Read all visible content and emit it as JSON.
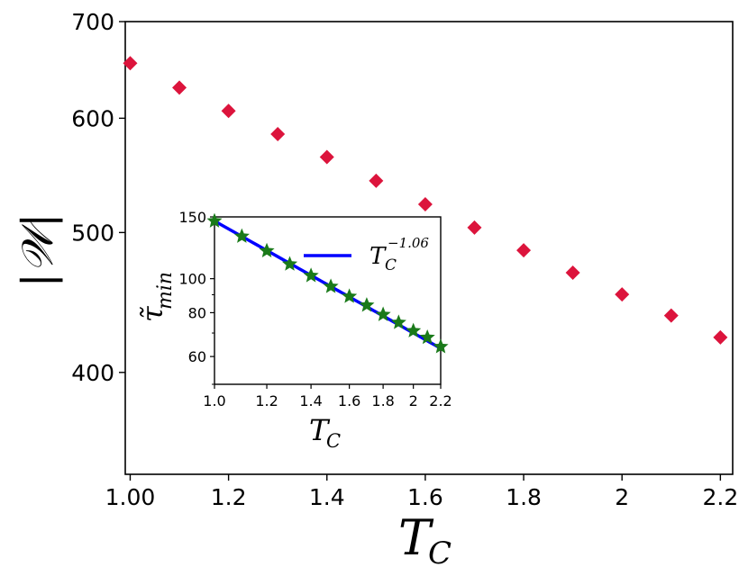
{
  "chart_data": [
    {
      "type": "scatter",
      "role": "main",
      "xlabel": "T",
      "xlabel_sub": "C",
      "ylabel": "|𝒲|",
      "y_scale": "log",
      "xlim": [
        0.99,
        2.225
      ],
      "ylim": [
        340,
        700
      ],
      "x_ticks": [
        1.0,
        1.2,
        1.4,
        1.6,
        1.8,
        2.0,
        2.2
      ],
      "x_tick_labels": [
        "1.00",
        "1.2",
        "1.4",
        "1.6",
        "1.8",
        "2",
        "2.2"
      ],
      "y_ticks": [
        400,
        500,
        600,
        700
      ],
      "y_tick_labels": [
        "400",
        "500",
        "600",
        "700"
      ],
      "marker_color": "#dc143c",
      "marker": "diamond",
      "series": [
        {
          "name": "|W|",
          "x": [
            1.0,
            1.1,
            1.2,
            1.3,
            1.4,
            1.5,
            1.6,
            1.7,
            1.8,
            1.9,
            2.0,
            2.1,
            2.2
          ],
          "y": [
            655,
            630,
            607,
            585,
            564,
            543,
            523,
            504,
            486,
            469,
            453,
            438,
            423
          ]
        }
      ]
    },
    {
      "type": "line",
      "role": "inset",
      "xlabel": "T",
      "xlabel_sub": "C",
      "ylabel": "τ̃",
      "ylabel_sub": "min",
      "y_scale": "log",
      "x_scale": "log",
      "xlim": [
        1.0,
        2.2
      ],
      "ylim": [
        50,
        150
      ],
      "x_ticks": [
        1.0,
        1.2,
        1.4,
        1.6,
        1.8,
        2.0,
        2.2
      ],
      "x_tick_labels": [
        "1.0",
        "1.2",
        "1.4",
        "1.6",
        "1.8",
        "2",
        "2.2"
      ],
      "y_ticks": [
        60,
        80,
        100,
        150
      ],
      "y_tick_labels": [
        "60",
        "80",
        "100",
        "150"
      ],
      "legend": {
        "label_base": "T",
        "label_sub": "C",
        "label_sup": "−1.06",
        "position": "top-right"
      },
      "line_color": "#0000ff",
      "marker_color": "#1a7a1a",
      "fit": {
        "name": "T_C^-1.06",
        "amplitude": 146,
        "exponent": -1.06
      },
      "series": [
        {
          "name": "tau_min",
          "x": [
            1.0,
            1.1,
            1.2,
            1.3,
            1.4,
            1.5,
            1.6,
            1.7,
            1.8,
            1.9,
            2.0,
            2.1,
            2.2
          ],
          "y": [
            146,
            132,
            120,
            110,
            102,
            95,
            89,
            84,
            79,
            75,
            71,
            68,
            64
          ]
        }
      ]
    }
  ]
}
